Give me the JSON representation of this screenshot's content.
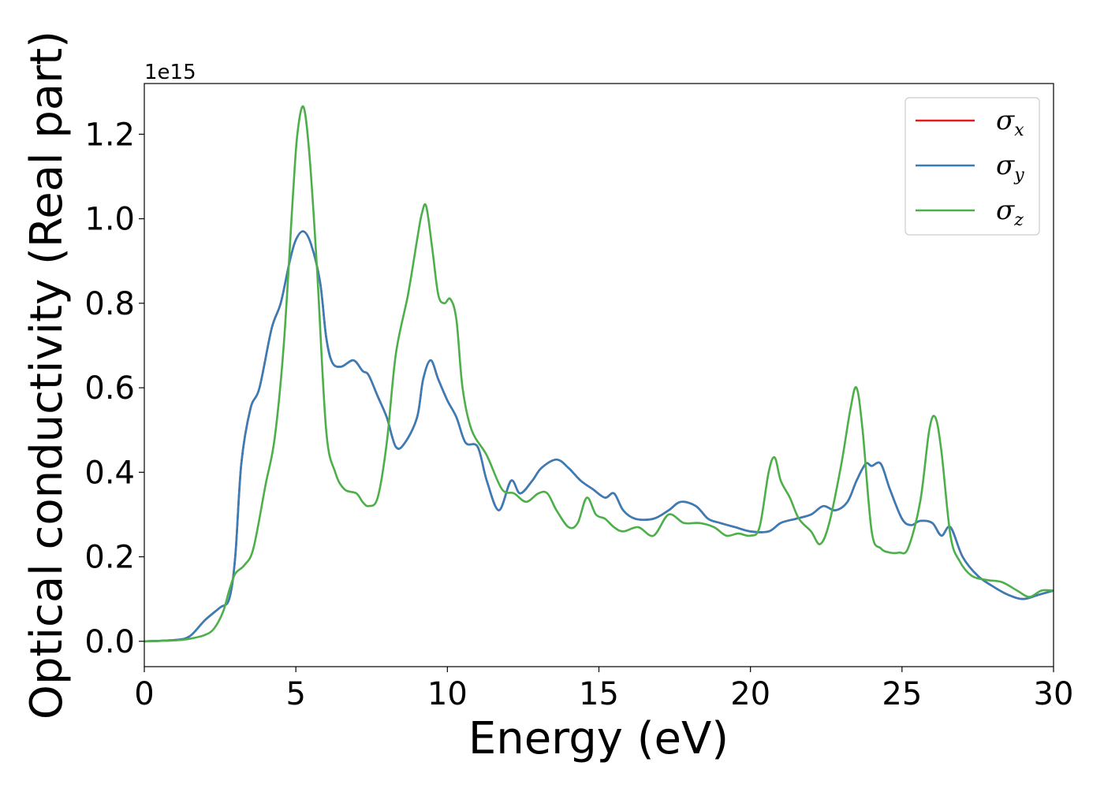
{
  "chart_data": {
    "type": "line",
    "title": "",
    "xlabel": "Energy (eV)",
    "ylabel": "Optical conductivity (Real part)",
    "y_offset_label": "1e15",
    "xlim": [
      0,
      30
    ],
    "ylim": [
      -0.06,
      1.32
    ],
    "y_scale_factor": 1000000000000000.0,
    "xticks": [
      0,
      5,
      10,
      15,
      20,
      25,
      30
    ],
    "xtick_labels": [
      "0",
      "5",
      "10",
      "15",
      "20",
      "25",
      "30"
    ],
    "yticks": [
      0.0,
      0.2,
      0.4,
      0.6,
      0.8,
      1.0,
      1.2
    ],
    "ytick_labels": [
      "0.0",
      "0.2",
      "0.4",
      "0.6",
      "0.8",
      "1.0",
      "1.2"
    ],
    "grid": false,
    "legend": {
      "location": "top-right",
      "entries": [
        {
          "symbol": "σ",
          "sub": "x",
          "color": "#e41a1c"
        },
        {
          "symbol": "σ",
          "sub": "y",
          "color": "#377eb8"
        },
        {
          "symbol": "σ",
          "sub": "z",
          "color": "#4daf4a"
        }
      ]
    },
    "series": [
      {
        "name": "σx",
        "color": "#e41a1c",
        "x": [
          0,
          1,
          1.5,
          2,
          2.5,
          2.8,
          3,
          3.2,
          3.5,
          3.8,
          4.2,
          4.5,
          4.8,
          5,
          5.25,
          5.5,
          5.8,
          6,
          6.2,
          6.5,
          6.9,
          7.2,
          7.4,
          7.7,
          8,
          8.3,
          8.6,
          9,
          9.2,
          9.45,
          9.7,
          10,
          10.3,
          10.6,
          11,
          11.3,
          11.7,
          12.1,
          12.4,
          12.8,
          13.1,
          13.6,
          14,
          14.4,
          14.8,
          15.2,
          15.5,
          15.8,
          16.2,
          16.8,
          17.3,
          17.7,
          18.2,
          18.6,
          19,
          19.5,
          20,
          20.6,
          21,
          21.5,
          22,
          22.4,
          22.8,
          23.2,
          23.5,
          23.8,
          24,
          24.3,
          24.6,
          25,
          25.3,
          25.6,
          26,
          26.3,
          26.6,
          27,
          27.5,
          28,
          28.5,
          29,
          29.5,
          30
        ],
        "values": [
          0,
          0.003,
          0.012,
          0.05,
          0.08,
          0.1,
          0.2,
          0.42,
          0.55,
          0.6,
          0.74,
          0.8,
          0.9,
          0.95,
          0.97,
          0.94,
          0.85,
          0.72,
          0.66,
          0.65,
          0.665,
          0.64,
          0.63,
          0.58,
          0.53,
          0.46,
          0.47,
          0.53,
          0.62,
          0.665,
          0.62,
          0.57,
          0.53,
          0.47,
          0.46,
          0.38,
          0.31,
          0.38,
          0.35,
          0.38,
          0.41,
          0.43,
          0.41,
          0.38,
          0.36,
          0.34,
          0.35,
          0.31,
          0.29,
          0.29,
          0.31,
          0.33,
          0.32,
          0.29,
          0.28,
          0.27,
          0.26,
          0.26,
          0.28,
          0.29,
          0.3,
          0.32,
          0.31,
          0.33,
          0.38,
          0.42,
          0.415,
          0.42,
          0.36,
          0.29,
          0.275,
          0.285,
          0.28,
          0.25,
          0.27,
          0.2,
          0.155,
          0.13,
          0.11,
          0.1,
          0.11,
          0.12
        ]
      },
      {
        "name": "σy",
        "color": "#377eb8",
        "x": [
          0,
          1,
          1.5,
          2,
          2.5,
          2.8,
          3,
          3.2,
          3.5,
          3.8,
          4.2,
          4.5,
          4.8,
          5,
          5.25,
          5.5,
          5.8,
          6,
          6.2,
          6.5,
          6.9,
          7.2,
          7.4,
          7.7,
          8,
          8.3,
          8.6,
          9,
          9.2,
          9.45,
          9.7,
          10,
          10.3,
          10.6,
          11,
          11.3,
          11.7,
          12.1,
          12.4,
          12.8,
          13.1,
          13.6,
          14,
          14.4,
          14.8,
          15.2,
          15.5,
          15.8,
          16.2,
          16.8,
          17.3,
          17.7,
          18.2,
          18.6,
          19,
          19.5,
          20,
          20.6,
          21,
          21.5,
          22,
          22.4,
          22.8,
          23.2,
          23.5,
          23.8,
          24,
          24.3,
          24.6,
          25,
          25.3,
          25.6,
          26,
          26.3,
          26.6,
          27,
          27.5,
          28,
          28.5,
          29,
          29.5,
          30
        ],
        "values": [
          0,
          0.003,
          0.012,
          0.05,
          0.08,
          0.1,
          0.2,
          0.42,
          0.55,
          0.6,
          0.74,
          0.8,
          0.9,
          0.95,
          0.97,
          0.94,
          0.85,
          0.72,
          0.66,
          0.65,
          0.665,
          0.64,
          0.63,
          0.58,
          0.53,
          0.46,
          0.47,
          0.53,
          0.62,
          0.665,
          0.62,
          0.57,
          0.53,
          0.47,
          0.46,
          0.38,
          0.31,
          0.38,
          0.35,
          0.38,
          0.41,
          0.43,
          0.41,
          0.38,
          0.36,
          0.34,
          0.35,
          0.31,
          0.29,
          0.29,
          0.31,
          0.33,
          0.32,
          0.29,
          0.28,
          0.27,
          0.26,
          0.26,
          0.28,
          0.29,
          0.3,
          0.32,
          0.31,
          0.33,
          0.38,
          0.42,
          0.415,
          0.42,
          0.36,
          0.29,
          0.275,
          0.285,
          0.28,
          0.25,
          0.27,
          0.2,
          0.155,
          0.13,
          0.11,
          0.1,
          0.11,
          0.12
        ]
      },
      {
        "name": "σz",
        "color": "#4daf4a",
        "x": [
          0,
          1,
          1.5,
          2,
          2.3,
          2.6,
          2.8,
          3,
          3.3,
          3.6,
          4,
          4.3,
          4.6,
          4.9,
          5.05,
          5.25,
          5.45,
          5.7,
          6,
          6.3,
          6.6,
          7,
          7.2,
          7.4,
          7.7,
          8,
          8.3,
          8.7,
          9,
          9.15,
          9.3,
          9.5,
          9.7,
          9.9,
          10.1,
          10.3,
          10.5,
          10.8,
          11.3,
          11.8,
          12.2,
          12.6,
          13,
          13.3,
          13.6,
          14,
          14.3,
          14.6,
          14.9,
          15.2,
          15.5,
          15.8,
          16.3,
          16.8,
          17.3,
          17.8,
          18.3,
          18.8,
          19.2,
          19.6,
          20,
          20.3,
          20.6,
          20.8,
          21,
          21.3,
          21.6,
          22,
          22.3,
          22.6,
          23,
          23.3,
          23.5,
          23.7,
          24,
          24.3,
          24.6,
          24.9,
          25.2,
          25.6,
          25.9,
          26.1,
          26.3,
          26.6,
          26.9,
          27.3,
          27.8,
          28.3,
          28.8,
          29.2,
          29.6,
          30
        ],
        "values": [
          0,
          0.002,
          0.006,
          0.015,
          0.03,
          0.07,
          0.12,
          0.16,
          0.18,
          0.22,
          0.37,
          0.48,
          0.7,
          1.05,
          1.2,
          1.265,
          1.15,
          0.88,
          0.5,
          0.4,
          0.36,
          0.35,
          0.33,
          0.32,
          0.34,
          0.47,
          0.68,
          0.82,
          0.95,
          1.01,
          1.03,
          0.93,
          0.82,
          0.8,
          0.81,
          0.76,
          0.6,
          0.5,
          0.44,
          0.36,
          0.35,
          0.33,
          0.35,
          0.35,
          0.31,
          0.27,
          0.28,
          0.34,
          0.3,
          0.29,
          0.27,
          0.26,
          0.27,
          0.25,
          0.3,
          0.28,
          0.28,
          0.27,
          0.25,
          0.255,
          0.25,
          0.27,
          0.4,
          0.435,
          0.38,
          0.34,
          0.29,
          0.26,
          0.23,
          0.28,
          0.42,
          0.55,
          0.6,
          0.5,
          0.26,
          0.22,
          0.21,
          0.21,
          0.22,
          0.33,
          0.5,
          0.53,
          0.45,
          0.25,
          0.19,
          0.155,
          0.145,
          0.14,
          0.12,
          0.105,
          0.12,
          0.12
        ]
      }
    ]
  }
}
